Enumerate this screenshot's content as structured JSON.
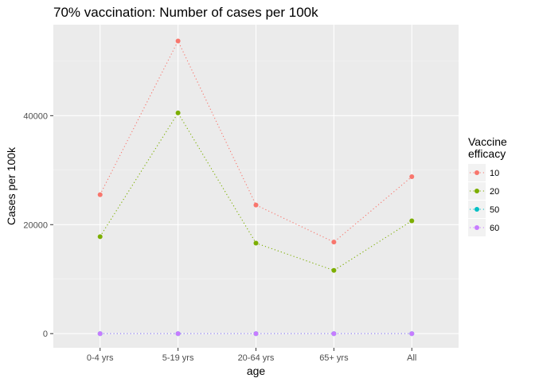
{
  "chart_data": {
    "type": "line",
    "title": "70% vaccination: Number of cases per 100k",
    "xlabel": "age",
    "ylabel": "Cases per 100k",
    "categories": [
      "0-4 yrs",
      "5-19 yrs",
      "20-64 yrs",
      "65+ yrs",
      "All"
    ],
    "ylim": [
      -2600,
      56700
    ],
    "yticks": [
      0,
      20000,
      40000
    ],
    "ytick_labels": [
      "0",
      "20000",
      "40000"
    ],
    "grid": true,
    "line_style": "dotted",
    "legend": {
      "title_lines": [
        "Vaccine",
        "efficacy"
      ],
      "position": "right"
    },
    "series": [
      {
        "name": "10",
        "color": "#F8766D",
        "values": [
          25500,
          53700,
          23600,
          16800,
          28800
        ]
      },
      {
        "name": "20",
        "color": "#7CAE00",
        "values": [
          17800,
          40500,
          16600,
          11600,
          20700
        ]
      },
      {
        "name": "50",
        "color": "#00BFC4",
        "values": [
          0,
          0,
          0,
          0,
          0
        ]
      },
      {
        "name": "60",
        "color": "#C77CFF",
        "values": [
          0,
          0,
          0,
          0,
          0
        ]
      }
    ]
  }
}
